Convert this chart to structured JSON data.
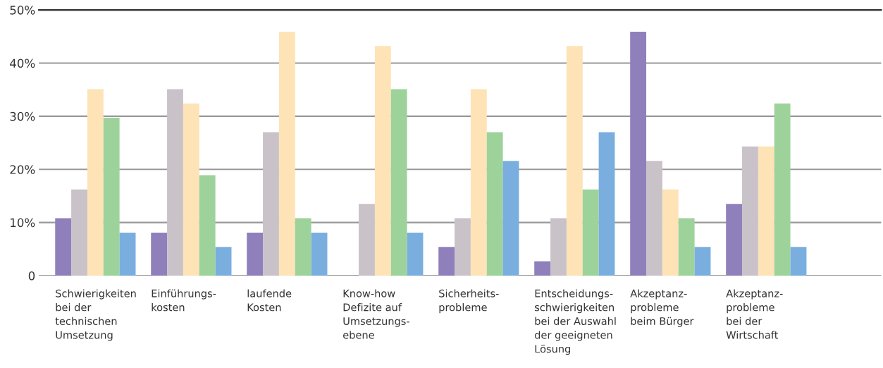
{
  "chart_data": {
    "type": "bar",
    "categories": [
      "Schwierigkeiten\nbei der\ntechnischen\nUmsetzung",
      "Einführungs-\nkosten",
      "laufende\nKosten",
      "Know-how\nDefizite auf\nUmsetzungs-\nebene",
      "Sicherheits-\nprobleme",
      "Entscheidungs-\nschwierigkeiten\nbei der Auswahl\nder geeigneten\nLösung",
      "Akzeptanz-\nprobleme\nbeim Bürger",
      "Akzeptanz-\nprobleme\nbei der\nWirtschaft"
    ],
    "series": [
      {
        "color": "#8f80bb",
        "values": [
          10.8,
          8.1,
          8.1,
          0,
          5.4,
          2.7,
          45.9,
          13.5
        ]
      },
      {
        "color": "#c9c2c9",
        "values": [
          16.2,
          35.1,
          27.0,
          13.5,
          10.8,
          10.8,
          21.6,
          24.3
        ]
      },
      {
        "color": "#fde3b6",
        "values": [
          35.1,
          32.4,
          45.9,
          43.2,
          35.1,
          43.2,
          16.2,
          24.3
        ]
      },
      {
        "color": "#9dd39b",
        "values": [
          29.7,
          18.9,
          10.8,
          35.1,
          27.0,
          16.2,
          10.8,
          32.4
        ]
      },
      {
        "color": "#7aaedf",
        "values": [
          8.1,
          5.4,
          8.1,
          8.1,
          21.6,
          27.0,
          5.4,
          5.4
        ]
      }
    ],
    "ylim": [
      0,
      50
    ],
    "yticks": [
      0,
      {
        "value": 10,
        "label": "10%"
      },
      {
        "value": 20,
        "label": "20%"
      },
      {
        "value": 30,
        "label": "30%"
      },
      {
        "value": 40,
        "label": "40%"
      },
      {
        "value": 50,
        "label": "50%"
      }
    ],
    "grid": "y"
  }
}
